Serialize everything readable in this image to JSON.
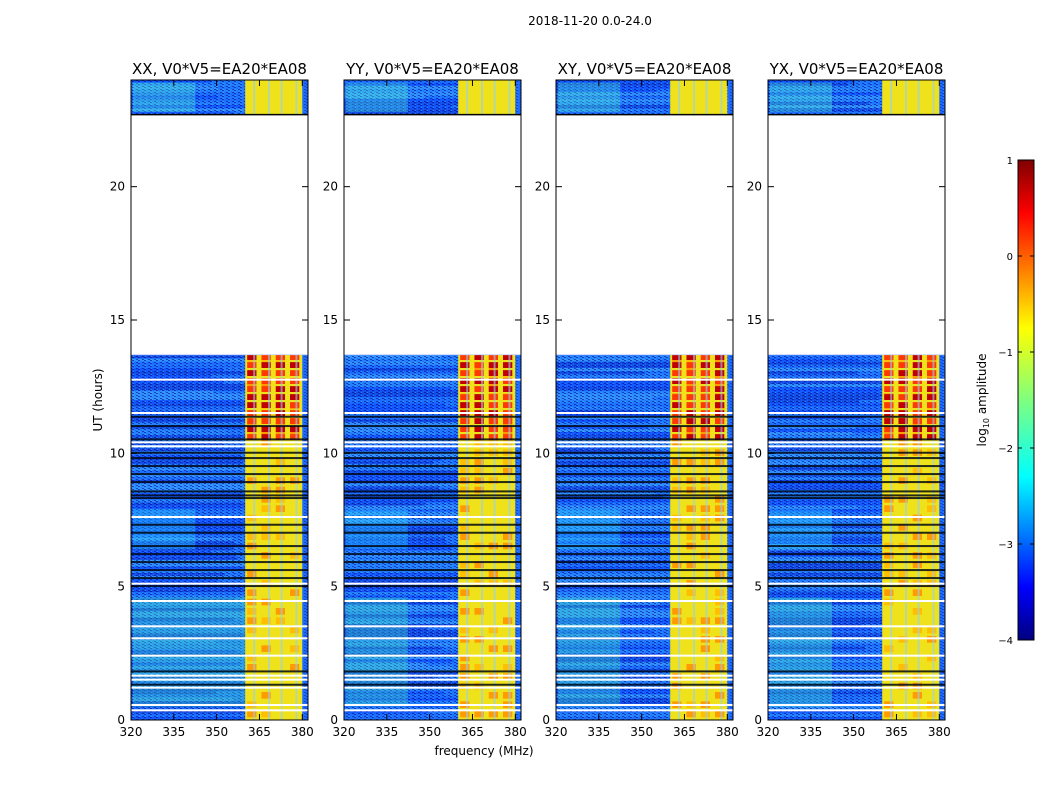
{
  "suptitle": "2018-11-20 0.0-24.0",
  "xlabel": "frequency (MHz)",
  "ylabel": "UT (hours)",
  "chart_data": {
    "type": "heatmap",
    "x_range_mhz": [
      320,
      382
    ],
    "y_range_hours": [
      0,
      24
    ],
    "x_ticks": [
      320,
      335,
      350,
      365,
      380
    ],
    "y_ticks": [
      0,
      5,
      10,
      15,
      20
    ],
    "data_gap_hours": [
      13.7,
      22.7
    ],
    "rfi_band_mhz": [
      360,
      380
    ],
    "strong_period_hours": [
      10.5,
      13.7
    ],
    "panels": [
      {
        "title": "XX, V0*V5=EA20*EA08"
      },
      {
        "title": "YY, V0*V5=EA20*EA08"
      },
      {
        "title": "XY, V0*V5=EA20*EA08"
      },
      {
        "title": "YX, V0*V5=EA20*EA08"
      }
    ],
    "colorbar": {
      "label": "log10 amplitude",
      "range": [
        -4,
        1
      ],
      "ticks": [
        "1",
        "0",
        "−1",
        "−2",
        "−3",
        "−4"
      ],
      "colors": [
        "#00007f",
        "#0000ff",
        "#007fff",
        "#00ffff",
        "#7fff7f",
        "#ffff00",
        "#ff7f00",
        "#ff0000",
        "#7f0000"
      ]
    }
  }
}
